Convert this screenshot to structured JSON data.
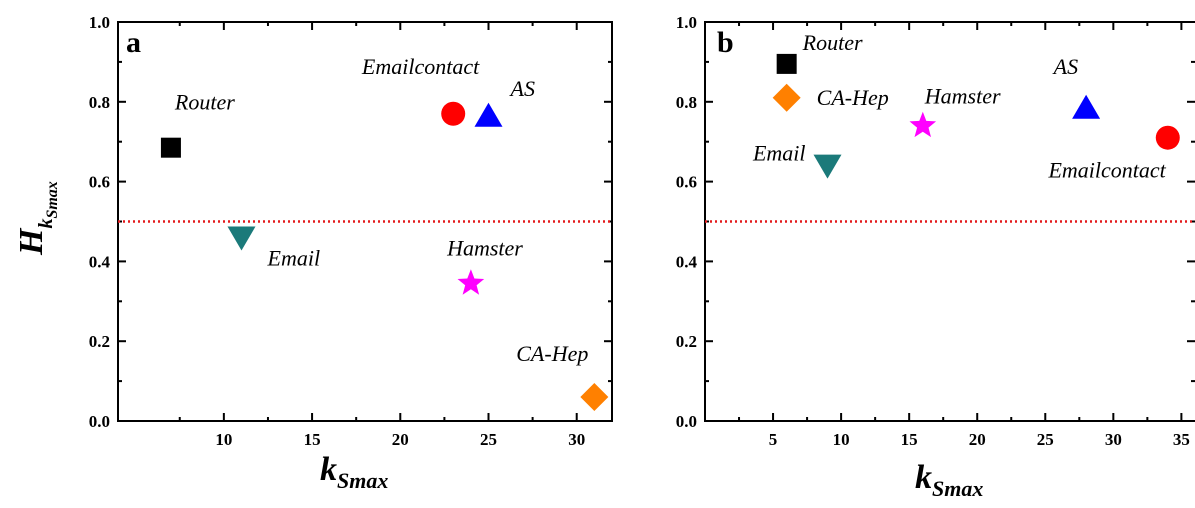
{
  "chart_data": [
    {
      "type": "scatter",
      "panel": "a",
      "xlabel": {
        "main": "k",
        "sub": "Smax"
      },
      "ylabel": {
        "main": "H",
        "sub1": "k",
        "sub2": "Smax"
      },
      "xlim": [
        4,
        32
      ],
      "ylim": [
        0,
        1.0
      ],
      "xticks": [
        "10",
        "15",
        "20",
        "25",
        "30"
      ],
      "yticks": [
        "0.0",
        "0.2",
        "0.4",
        "0.6",
        "0.8",
        "1.0"
      ],
      "reference_line": {
        "y": 0.5,
        "style": "dotted",
        "color": "#e41a1c"
      },
      "points": [
        {
          "label": "Router",
          "x": 7,
          "y": 0.685,
          "marker": "square",
          "color": "#000000"
        },
        {
          "label": "Email",
          "x": 11,
          "y": 0.46,
          "marker": "triangle-down",
          "color": "#1b7a7a"
        },
        {
          "label": "Emailcontact",
          "x": 23,
          "y": 0.77,
          "marker": "circle",
          "color": "#ff0000"
        },
        {
          "label": "AS",
          "x": 25,
          "y": 0.765,
          "marker": "triangle-up",
          "color": "#0000ff"
        },
        {
          "label": "Hamster",
          "x": 24,
          "y": 0.345,
          "marker": "star",
          "color": "#ff00ff"
        },
        {
          "label": "CA-Hep",
          "x": 31,
          "y": 0.06,
          "marker": "diamond",
          "color": "#ff8000"
        }
      ]
    },
    {
      "type": "scatter",
      "panel": "b",
      "xlabel": {
        "main": "k",
        "sub": "Smax"
      },
      "xlim": [
        0,
        36
      ],
      "ylim": [
        0,
        1.0
      ],
      "xticks": [
        "5",
        "10",
        "15",
        "20",
        "25",
        "30",
        "35"
      ],
      "yticks": [
        "0.0",
        "0.2",
        "0.4",
        "0.6",
        "0.8",
        "1.0"
      ],
      "reference_line": {
        "y": 0.5,
        "style": "dotted",
        "color": "#e41a1c"
      },
      "points": [
        {
          "label": "Router",
          "x": 6,
          "y": 0.895,
          "marker": "square",
          "color": "#000000"
        },
        {
          "label": "CA-Hep",
          "x": 6,
          "y": 0.81,
          "marker": "diamond",
          "color": "#ff8000"
        },
        {
          "label": "Email",
          "x": 9,
          "y": 0.64,
          "marker": "triangle-down",
          "color": "#1b7a7a"
        },
        {
          "label": "Hamster",
          "x": 16,
          "y": 0.74,
          "marker": "star",
          "color": "#ff00ff"
        },
        {
          "label": "AS",
          "x": 28,
          "y": 0.785,
          "marker": "triangle-up",
          "color": "#0000ff"
        },
        {
          "label": "Emailcontact",
          "x": 34,
          "y": 0.71,
          "marker": "circle",
          "color": "#ff0000"
        }
      ]
    }
  ]
}
